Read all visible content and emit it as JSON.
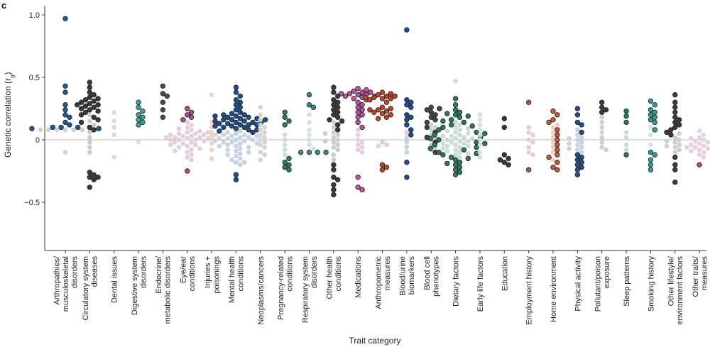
{
  "chart_data": {
    "type": "scatter",
    "panel_label": "c",
    "xlabel": "Trait category",
    "ylabel": "Genetic correlation (r",
    "ylabel_sub": "g",
    "ylabel_end": ")",
    "ylim": [
      -0.9,
      1.1
    ],
    "yticks": [
      1.0,
      0.5,
      0,
      -0.5
    ],
    "ytick_labels": [
      "1.0",
      "0.5",
      "0",
      "−0.5"
    ],
    "reference_line": 0,
    "colors": {
      "significant_outline": "#222222",
      "zero_line": "#bbbbbb",
      "axis": "#333333"
    },
    "categories": [
      {
        "label": [
          "Arthropathies/",
          "musculoskeletal",
          "disorders"
        ],
        "color": "#1f5a9a",
        "light": "#c8cfd9",
        "sig": [
          0.97,
          0.43,
          0.38,
          0.28,
          0.24,
          0.2,
          0.18,
          0.14,
          0.12,
          0.1,
          0.1,
          0.1,
          0.09,
          0.09
        ],
        "ns": [
          0.08,
          0.08,
          0.08,
          0.08,
          0.08,
          0.08,
          0.08,
          -0.1
        ]
      },
      {
        "label": [
          "Circulatory system",
          "diseases"
        ],
        "color": "#3a3a3a",
        "light": "#c9c9c9",
        "sig": [
          0.46,
          0.42,
          0.38,
          0.36,
          0.34,
          0.33,
          0.32,
          0.31,
          0.3,
          0.29,
          0.28,
          0.28,
          0.27,
          0.26,
          0.25,
          0.24,
          0.23,
          0.22,
          0.2,
          0.18,
          0.16,
          0.14,
          0.1,
          0.08,
          -0.26,
          -0.28,
          -0.3,
          -0.3,
          -0.32,
          -0.38
        ],
        "ns": [
          0.2,
          0.15,
          0.12,
          0.06,
          0.02,
          -0.02,
          -0.06,
          -0.1
        ]
      },
      {
        "label": [
          "Dental issues"
        ],
        "color": "#2e8b73",
        "light": "#c8ddd6",
        "sig": [],
        "ns": [
          0.22,
          0.15,
          0.1,
          0.04,
          -0.14
        ]
      },
      {
        "label": [
          "Digestive system",
          "disorders"
        ],
        "color": "#3fa79a",
        "light": "#cfe3df",
        "sig": [
          0.3,
          0.26,
          0.23,
          0.2,
          0.18,
          0.16,
          0.14,
          0.12
        ],
        "ns": [
          -0.02
        ]
      },
      {
        "label": [
          "Endocrine/",
          "metabolic disorders"
        ],
        "color": "#4a4a4a",
        "light": "#cccccc",
        "sig": [
          0.43,
          0.37,
          0.35,
          0.3,
          0.24,
          0.18
        ],
        "ns": []
      },
      {
        "label": [
          "Eye/ear",
          "conditions"
        ],
        "color": "#a94d8c",
        "light": "#e2cbdb",
        "sig": [
          0.25,
          0.22,
          0.2,
          0.18,
          0.16,
          -0.25
        ],
        "ns": [
          0.14,
          0.1,
          0.08,
          0.06,
          0.05,
          0.05,
          0.04,
          0.04,
          0.03,
          0.03,
          0.02,
          0.02,
          0.01,
          0.01,
          0.0,
          0.0,
          -0.01,
          -0.02,
          -0.03,
          -0.04,
          -0.05,
          -0.06,
          -0.08,
          -0.1,
          -0.12,
          -0.14,
          -0.16,
          0.12,
          0.09,
          0.07,
          0.06,
          0.04,
          0.02,
          0.0,
          -0.02,
          -0.04,
          -0.07,
          -0.09
        ]
      },
      {
        "label": [
          "Injuries +",
          "poisonings"
        ],
        "color": "#c9825a",
        "light": "#ead3c5",
        "sig": [],
        "ns": [
          0.36,
          0.14,
          0.1,
          0.06,
          0.04,
          0.02,
          -0.03,
          -0.08,
          -0.15
        ]
      },
      {
        "label": [
          "Mental health",
          "conditions"
        ],
        "color": "#1f4e8c",
        "light": "#c6d0de",
        "sig": [
          0.42,
          0.38,
          0.35,
          0.32,
          0.3,
          0.28,
          0.26,
          0.24,
          0.22,
          0.21,
          0.2,
          0.19,
          0.18,
          0.17,
          0.16,
          0.15,
          0.14,
          0.13,
          0.12,
          0.11,
          0.1,
          0.09,
          0.08,
          0.07,
          0.06,
          0.2,
          0.18,
          0.16,
          0.14,
          0.12,
          0.1,
          0.08,
          0.15,
          0.13,
          0.11,
          0.17,
          0.19,
          0.14,
          0.12,
          0.16,
          -0.28,
          -0.32
        ],
        "ns": [
          0.05,
          0.04,
          0.03,
          0.02,
          0.01,
          0.0,
          -0.01,
          -0.02,
          -0.03,
          -0.05,
          -0.07,
          -0.09,
          -0.11,
          -0.13,
          -0.15,
          -0.18,
          -0.2,
          0.06,
          0.04,
          0.02,
          0.0,
          -0.02,
          -0.04,
          -0.06,
          -0.08,
          -0.1,
          0.07,
          0.03,
          0.01,
          -0.01,
          -0.03,
          -0.05,
          -0.12,
          -0.16,
          -0.18
        ]
      },
      {
        "label": [
          "Neoplasms/cancers"
        ],
        "color": "#5a5a5a",
        "light": "#d2d2d2",
        "sig": [],
        "ns": [
          0.26,
          0.2,
          0.16,
          0.12,
          0.1,
          0.08,
          0.06,
          0.04,
          0.02,
          0.0,
          -0.02,
          -0.04,
          -0.06,
          -0.1,
          -0.12,
          -0.16
        ]
      },
      {
        "label": [
          "Pregnancy-related",
          "conditions"
        ],
        "color": "#2f7a5e",
        "light": "#cadbd3",
        "sig": [
          0.22,
          0.18,
          0.15,
          0.12,
          -0.15,
          -0.18,
          -0.2,
          -0.22,
          -0.24
        ],
        "ns": [
          0.04,
          0.0,
          -0.04,
          -0.08,
          -0.12
        ]
      },
      {
        "label": [
          "Respiratory system",
          "disorders"
        ],
        "color": "#3b8a8a",
        "light": "#cfe0e0",
        "sig": [
          0.36,
          0.28,
          0.26,
          -0.1,
          -0.1,
          -0.1,
          -0.1
        ],
        "ns": [
          0.2,
          0.14,
          0.08,
          0.04,
          0.0,
          -0.04,
          -0.07
        ]
      },
      {
        "label": [
          "Other health",
          "conditions"
        ],
        "color": "#3a3a3a",
        "light": "#cacaca",
        "sig": [
          0.42,
          0.38,
          0.35,
          0.32,
          0.3,
          0.28,
          0.26,
          0.24,
          0.22,
          0.2,
          0.18,
          0.16,
          0.15,
          0.12,
          0.08,
          -0.2,
          -0.24,
          -0.3,
          -0.32,
          -0.36,
          -0.4,
          -0.44
        ],
        "ns": [
          0.1,
          0.06,
          0.04,
          0.02,
          0.0,
          -0.02,
          -0.04,
          -0.06,
          -0.08,
          -0.12,
          -0.16,
          0.14,
          0.05,
          -0.01
        ]
      },
      {
        "label": [
          "Medications"
        ],
        "color": "#b5569e",
        "light": "#e5cbe0",
        "sig": [
          0.41,
          0.4,
          0.39,
          0.38,
          0.38,
          0.37,
          0.37,
          0.36,
          0.36,
          0.35,
          0.35,
          0.34,
          0.33,
          0.32,
          0.3,
          0.28,
          0.26,
          0.24,
          0.22,
          0.2,
          0.18,
          0.14,
          0.1,
          -0.3,
          -0.38,
          -0.4
        ],
        "ns": [
          0.08,
          0.04,
          0.0,
          -0.02,
          -0.04,
          -0.06,
          -0.08,
          -0.1
        ]
      },
      {
        "label": [
          "Anthropometric",
          "measures"
        ],
        "color": "#b8462a",
        "light": "#ecc9bd",
        "sig": [
          0.38,
          0.37,
          0.36,
          0.35,
          0.35,
          0.34,
          0.34,
          0.33,
          0.33,
          0.32,
          0.3,
          0.26,
          0.25,
          0.24,
          0.24,
          0.23,
          0.22,
          0.21,
          0.2,
          0.18,
          0.17,
          -0.2,
          -0.22,
          -0.24
        ],
        "ns": [
          -0.02,
          -0.04,
          -0.05
        ]
      },
      {
        "label": [
          "Blood/urine",
          "biomarkers"
        ],
        "color": "#1f4e8c",
        "light": "#c5cfdd",
        "sig": [
          0.88,
          0.32,
          0.3,
          0.28,
          0.26,
          0.2,
          0.18,
          0.16,
          0.12,
          0.08,
          0.04,
          -0.18,
          -0.3
        ],
        "ns": [
          0.02,
          -0.02,
          -0.06,
          -0.1,
          0.06
        ]
      },
      {
        "label": [
          "Blood cell",
          "phenotypes"
        ],
        "color": "#444444",
        "light": "#cccccc",
        "sig": [
          0.26,
          0.25,
          0.24,
          0.22,
          0.2,
          0.18,
          0.16,
          0.14,
          0.1,
          0.06,
          0.02,
          -0.02,
          -0.1
        ],
        "ns": [
          0.12,
          0.08,
          0.04,
          0.0,
          -0.04,
          -0.06,
          -0.08,
          0.1,
          0.02
        ]
      },
      {
        "label": [
          "Dietary factors"
        ],
        "color": "#2f7a5e",
        "light": "#c9d9d2",
        "sig": [
          0.33,
          0.28,
          0.24,
          0.22,
          0.2,
          0.18,
          0.16,
          0.14,
          0.12,
          0.1,
          0.08,
          0.06,
          0.04,
          0.02,
          0.0,
          -0.02,
          -0.04,
          -0.06,
          -0.08,
          -0.1,
          -0.12,
          -0.14,
          -0.16,
          -0.18,
          -0.2,
          -0.22,
          -0.24,
          -0.26,
          -0.28,
          0.21,
          0.19,
          0.15,
          0.11,
          0.05,
          0.01,
          -0.03,
          -0.07,
          -0.11,
          -0.15,
          -0.19
        ],
        "ns": [
          0.47,
          0.1,
          0.08,
          0.06,
          0.04,
          0.03,
          0.02,
          0.01,
          0.0,
          -0.01,
          -0.02,
          -0.03,
          -0.04,
          -0.05,
          -0.06,
          -0.08,
          -0.1,
          -0.12,
          0.07,
          0.05,
          0.03,
          0.01,
          -0.01,
          -0.03,
          -0.05,
          -0.07,
          -0.09,
          0.09,
          -0.11,
          0.12,
          -0.14,
          0.14
        ]
      },
      {
        "label": [
          "Early life factors"
        ],
        "color": "#3a8a78",
        "light": "#cde0da",
        "sig": [],
        "ns": [
          0.2,
          0.16,
          0.12,
          0.08,
          0.04,
          0.0,
          -0.04,
          -0.1,
          -0.14
        ]
      },
      {
        "label": [
          "Education"
        ],
        "color": "#3a3a3a",
        "light": "#cccccc",
        "sig": [
          0.17,
          0.1,
          -0.12,
          -0.15,
          -0.18,
          -0.2,
          -0.16
        ],
        "ns": []
      },
      {
        "label": [
          "Employment history"
        ],
        "color": "#a94d8c",
        "light": "#e4cadc",
        "sig": [
          0.3,
          -0.24
        ],
        "ns": [
          0.1,
          0.06,
          0.04,
          0.0,
          -0.02,
          -0.06,
          -0.1,
          -0.12
        ]
      },
      {
        "label": [
          "Home environment"
        ],
        "color": "#c05a3a",
        "light": "#eccec2",
        "sig": [
          0.23,
          0.2,
          0.16,
          0.14,
          0.08,
          0.04,
          0.0,
          -0.04,
          -0.08,
          -0.12,
          -0.14,
          -0.18,
          -0.22,
          -0.24
        ],
        "ns": [
          0.1,
          0.06,
          0.02,
          -0.02,
          -0.06,
          -0.1,
          -0.16,
          0.12
        ]
      },
      {
        "label": [
          "Physical activity"
        ],
        "color": "#1f4e8c",
        "light": "#c6d0de",
        "sig": [
          0.25,
          0.2,
          0.14,
          0.12,
          -0.12,
          -0.14,
          -0.16,
          -0.18,
          -0.2,
          -0.22,
          -0.24,
          -0.28,
          0.06
        ],
        "ns": [
          0.04,
          0.02,
          0.0,
          -0.02,
          -0.04,
          -0.06,
          -0.08,
          -0.1,
          0.08,
          0.01,
          -0.03,
          -0.07
        ]
      },
      {
        "label": [
          "Pollutant/poison",
          "exposure"
        ],
        "color": "#3a3a3a",
        "light": "#cccccc",
        "sig": [
          0.3,
          0.26,
          0.24,
          0.22
        ],
        "ns": [
          0.18,
          0.14,
          0.1,
          0.06,
          0.02,
          -0.02,
          -0.06,
          -0.08
        ]
      },
      {
        "label": [
          "Sleep patterns"
        ],
        "color": "#2f7a5e",
        "light": "#c9dad2",
        "sig": [
          0.23,
          0.19,
          0.14,
          -0.12
        ],
        "ns": [
          0.06,
          0.02,
          -0.04,
          -0.08
        ]
      },
      {
        "label": [
          "Smoking history"
        ],
        "color": "#3a9a96",
        "light": "#cde3e1",
        "sig": [
          0.31,
          0.28,
          0.24,
          0.22,
          0.2,
          0.18,
          0.16,
          0.14,
          0.08,
          -0.1,
          -0.12,
          -0.16,
          -0.2,
          -0.24
        ],
        "ns": [
          0.1,
          0.04,
          -0.04
        ]
      },
      {
        "label": [
          "Other lifestyle/",
          "environment factors"
        ],
        "color": "#3a3a3a",
        "light": "#cbcbcb",
        "sig": [
          0.36,
          0.3,
          0.26,
          0.22,
          0.18,
          0.16,
          0.14,
          0.12,
          0.1,
          0.08,
          0.06,
          0.04,
          -0.14,
          -0.2,
          -0.24,
          -0.34
        ],
        "ns": [
          0.02,
          0.0,
          -0.02,
          -0.04,
          -0.06,
          -0.08,
          -0.1,
          0.05,
          -0.01,
          -0.05
        ]
      },
      {
        "label": [
          "Other traits/",
          "measures"
        ],
        "color": "#a94d8c",
        "light": "#e6cdde",
        "sig": [
          -0.2
        ],
        "ns": [
          0.07,
          0.04,
          0.02,
          0.0,
          -0.01,
          -0.02,
          -0.03,
          -0.04,
          -0.05,
          -0.06,
          -0.07,
          -0.08,
          -0.1,
          -0.12,
          -0.14,
          0.01,
          -0.03,
          -0.06,
          -0.09,
          0.03
        ]
      }
    ]
  }
}
